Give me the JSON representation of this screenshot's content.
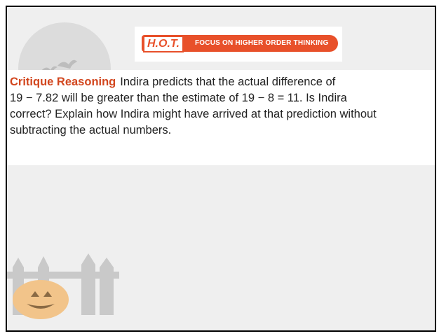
{
  "banner": {
    "logo": "H.O.T.",
    "text": "FOCUS ON HIGHER ORDER THINKING"
  },
  "problem": {
    "label": "Critique Reasoning",
    "lines": [
      "Indira predicts that the actual difference of",
      "19 − 7.82 will be greater than the estimate of 19 − 8 = 11. Is Indira",
      "correct? Explain how Indira might have arrived at that prediction without",
      "subtracting the actual numbers."
    ]
  }
}
